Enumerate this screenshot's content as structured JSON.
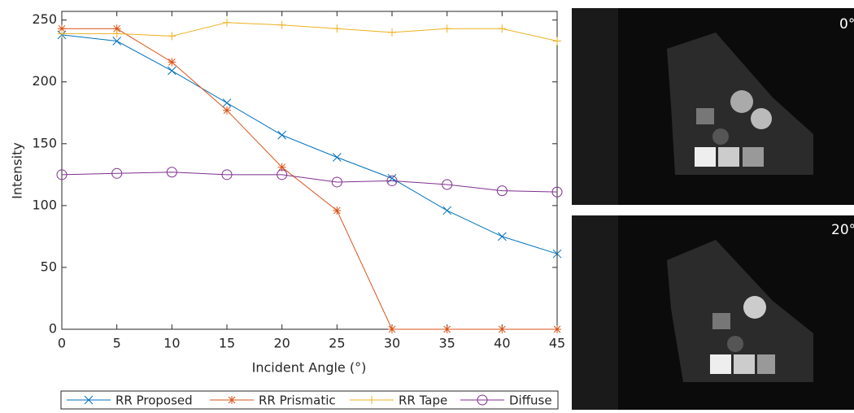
{
  "chart_data": {
    "type": "line",
    "x_label": "Incident Angle (°)",
    "y_label": "Intensity",
    "x": [
      0,
      5,
      10,
      15,
      20,
      25,
      30,
      35,
      40,
      45
    ],
    "xlim": [
      0,
      45
    ],
    "xticks": [
      0,
      5,
      10,
      15,
      20,
      25,
      30,
      35,
      40,
      45
    ],
    "ylim": [
      0,
      257
    ],
    "yticks": [
      0,
      50,
      100,
      150,
      200,
      250
    ],
    "legend": "bottom",
    "series": [
      {
        "name": "RR Proposed",
        "color": "#0072bd",
        "marker": "x",
        "values": [
          238,
          233,
          209,
          183,
          157,
          139,
          122,
          96,
          75,
          61
        ]
      },
      {
        "name": "RR Prismatic",
        "color": "#d95319",
        "marker": "asterisk",
        "values": [
          243,
          243,
          216,
          177,
          131,
          96,
          0,
          0,
          0,
          0
        ]
      },
      {
        "name": "RR Tape",
        "color": "#edb120",
        "marker": "plus",
        "values": [
          239,
          239,
          237,
          248,
          246,
          243,
          240,
          243,
          243,
          233
        ]
      },
      {
        "name": "Diffuse",
        "color": "#7e2f8e",
        "marker": "circle",
        "values": [
          125,
          126,
          127,
          125,
          125,
          119,
          120,
          117,
          112,
          111
        ]
      }
    ]
  },
  "photos": [
    {
      "label": "0°"
    },
    {
      "label": "20°"
    }
  ]
}
